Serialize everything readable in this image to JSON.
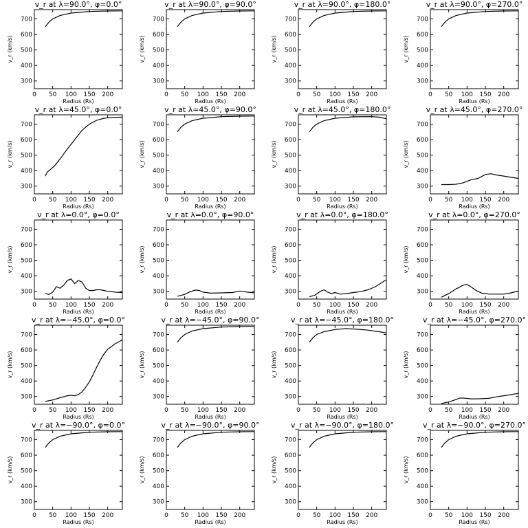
{
  "figure": {
    "xlabel": "Radius (Rs)",
    "ylabel": "v_r (km/s)",
    "xlim": [
      0,
      240
    ],
    "ylim": [
      250,
      760
    ],
    "xticks": [
      0,
      50,
      100,
      150,
      200
    ],
    "yticks": [
      300,
      400,
      500,
      600,
      700
    ]
  },
  "chart_data": [
    {
      "type": "line",
      "title": "v_r at λ=90.0°, φ=0.0°",
      "x": [
        30,
        40,
        50,
        70,
        100,
        150,
        200,
        240
      ],
      "y": [
        650,
        680,
        700,
        722,
        738,
        748,
        751,
        752
      ]
    },
    {
      "type": "line",
      "title": "v_r at λ=90.0°, φ=90.0°",
      "x": [
        30,
        40,
        50,
        70,
        100,
        150,
        200,
        240
      ],
      "y": [
        650,
        680,
        700,
        722,
        738,
        748,
        751,
        752
      ]
    },
    {
      "type": "line",
      "title": "v_r at λ=90.0°, φ=180.0°",
      "x": [
        30,
        40,
        50,
        70,
        100,
        150,
        200,
        240
      ],
      "y": [
        650,
        680,
        700,
        722,
        738,
        748,
        751,
        752
      ]
    },
    {
      "type": "line",
      "title": "v_r at λ=90.0°, φ=270.0°",
      "x": [
        30,
        40,
        50,
        70,
        100,
        150,
        200,
        240
      ],
      "y": [
        650,
        680,
        700,
        722,
        738,
        748,
        751,
        752
      ]
    },
    {
      "type": "line",
      "title": "v_r at λ=45.0°, φ=0.0°",
      "x": [
        30,
        35,
        45,
        55,
        70,
        90,
        110,
        130,
        150,
        170,
        190,
        210,
        240
      ],
      "y": [
        365,
        390,
        410,
        430,
        475,
        540,
        600,
        660,
        700,
        725,
        738,
        743,
        745
      ]
    },
    {
      "type": "line",
      "title": "v_r at λ=45.0°, φ=90.0°",
      "x": [
        30,
        40,
        50,
        70,
        100,
        150,
        200,
        240
      ],
      "y": [
        650,
        680,
        700,
        722,
        738,
        748,
        751,
        752
      ]
    },
    {
      "type": "line",
      "title": "v_r at λ=45.0°, φ=180.0°",
      "x": [
        30,
        40,
        50,
        70,
        100,
        150,
        200,
        220,
        240
      ],
      "y": [
        650,
        680,
        700,
        722,
        738,
        747,
        748,
        745,
        735
      ]
    },
    {
      "type": "line",
      "title": "v_r at λ=45.0°, φ=270.0°",
      "x": [
        30,
        50,
        70,
        90,
        110,
        130,
        150,
        165,
        180,
        200,
        220,
        240
      ],
      "y": [
        310,
        310,
        312,
        322,
        340,
        350,
        375,
        380,
        372,
        365,
        357,
        350
      ]
    },
    {
      "type": "line",
      "title": "v_r at λ=0.0°, φ=0.0°",
      "x": [
        30,
        40,
        50,
        60,
        70,
        80,
        90,
        100,
        110,
        120,
        130,
        140,
        150,
        160,
        170,
        180,
        200,
        220,
        240
      ],
      "y": [
        285,
        280,
        295,
        330,
        320,
        340,
        370,
        380,
        350,
        370,
        360,
        320,
        305,
        305,
        310,
        310,
        300,
        295,
        292
      ]
    },
    {
      "type": "line",
      "title": "v_r at λ=0.0°, φ=90.0°",
      "x": [
        30,
        50,
        65,
        80,
        90,
        100,
        120,
        150,
        180,
        200,
        220,
        240
      ],
      "y": [
        268,
        280,
        298,
        308,
        305,
        295,
        288,
        290,
        292,
        302,
        295,
        290
      ]
    },
    {
      "type": "line",
      "title": "v_r at λ=0.0°, φ=180.0°",
      "x": [
        30,
        45,
        60,
        70,
        80,
        90,
        100,
        115,
        130,
        150,
        170,
        190,
        210,
        230,
        240
      ],
      "y": [
        265,
        275,
        300,
        310,
        295,
        285,
        292,
        282,
        285,
        292,
        298,
        310,
        330,
        360,
        375
      ]
    },
    {
      "type": "line",
      "title": "v_r at λ=0.0°, φ=270.0°",
      "x": [
        30,
        50,
        70,
        90,
        100,
        110,
        125,
        140,
        160,
        180,
        200,
        220,
        240
      ],
      "y": [
        262,
        285,
        315,
        340,
        345,
        330,
        305,
        288,
        282,
        282,
        282,
        290,
        302
      ]
    },
    {
      "type": "line",
      "title": "v_r at λ=−45.0°, φ=0.0°",
      "x": [
        30,
        50,
        70,
        90,
        100,
        110,
        120,
        130,
        140,
        150,
        160,
        170,
        180,
        190,
        200,
        220,
        240
      ],
      "y": [
        268,
        278,
        292,
        305,
        308,
        305,
        312,
        330,
        360,
        395,
        440,
        490,
        535,
        575,
        605,
        640,
        665
      ]
    },
    {
      "type": "line",
      "title": "v_r at λ=−45.0°, φ=90.0°",
      "x": [
        30,
        40,
        50,
        70,
        100,
        150,
        200,
        240
      ],
      "y": [
        650,
        680,
        700,
        722,
        738,
        748,
        751,
        752
      ]
    },
    {
      "type": "line",
      "title": "v_r at λ=−45.0°, φ=180.0°",
      "x": [
        30,
        40,
        50,
        70,
        100,
        130,
        160,
        190,
        220,
        240
      ],
      "y": [
        650,
        680,
        700,
        718,
        732,
        738,
        734,
        728,
        718,
        710
      ]
    },
    {
      "type": "line",
      "title": "v_r at λ=−45.0°, φ=270.0°",
      "x": [
        30,
        50,
        70,
        80,
        90,
        110,
        130,
        160,
        180,
        200,
        220,
        240
      ],
      "y": [
        255,
        265,
        280,
        290,
        290,
        285,
        285,
        288,
        298,
        305,
        312,
        320
      ]
    },
    {
      "type": "line",
      "title": "v_r at λ=−90.0°, φ=0.0°",
      "x": [
        30,
        40,
        50,
        70,
        100,
        150,
        200,
        240
      ],
      "y": [
        650,
        680,
        700,
        722,
        738,
        748,
        751,
        752
      ]
    },
    {
      "type": "line",
      "title": "v_r at λ=−90.0°, φ=90.0°",
      "x": [
        30,
        40,
        50,
        70,
        100,
        150,
        200,
        240
      ],
      "y": [
        650,
        680,
        700,
        722,
        738,
        748,
        751,
        752
      ]
    },
    {
      "type": "line",
      "title": "v_r at λ=−90.0°, φ=180.0°",
      "x": [
        30,
        40,
        50,
        70,
        100,
        150,
        200,
        240
      ],
      "y": [
        650,
        680,
        700,
        722,
        738,
        748,
        751,
        752
      ]
    },
    {
      "type": "line",
      "title": "v_r at λ=−90.0°, φ=270.0°",
      "x": [
        30,
        40,
        50,
        70,
        100,
        150,
        200,
        240
      ],
      "y": [
        650,
        680,
        700,
        722,
        738,
        748,
        751,
        752
      ]
    }
  ]
}
